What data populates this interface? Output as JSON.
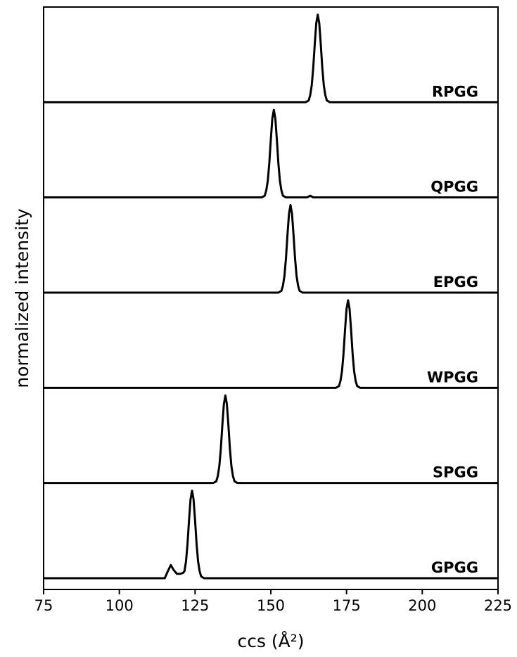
{
  "chart_data": {
    "type": "line",
    "xlabel": "ccs (Å²)",
    "ylabel": "normalized intensity",
    "color": "#000000",
    "xlim": [
      75,
      225
    ],
    "xticks": [
      75,
      100,
      125,
      150,
      175,
      200,
      225
    ],
    "series": [
      {
        "name": "RPGG",
        "x": [
          75,
          161.5,
          162.5,
          163,
          163.5,
          164,
          164.5,
          165,
          165.5,
          166,
          166.5,
          167,
          167.5,
          168,
          168.5,
          169.5,
          225
        ],
        "values": [
          0,
          0,
          0.02,
          0.08,
          0.19,
          0.39,
          0.66,
          0.9,
          1,
          0.9,
          0.66,
          0.39,
          0.19,
          0.08,
          0.02,
          0,
          0
        ]
      },
      {
        "name": "QPGG",
        "x": [
          75,
          147,
          148,
          148.5,
          149,
          149.5,
          150,
          150.5,
          151,
          151.5,
          152,
          152.5,
          153,
          153.5,
          154,
          155,
          162,
          163,
          164,
          225
        ],
        "values": [
          0,
          0,
          0.02,
          0.08,
          0.19,
          0.39,
          0.66,
          0.9,
          1,
          0.9,
          0.66,
          0.39,
          0.19,
          0.08,
          0.02,
          0,
          0,
          0.02,
          0,
          0
        ]
      },
      {
        "name": "EPGG",
        "x": [
          75,
          152.5,
          153.5,
          154,
          154.5,
          155,
          155.5,
          156,
          156.5,
          157,
          157.5,
          158,
          158.5,
          159,
          159.5,
          160.5,
          225
        ],
        "values": [
          0,
          0,
          0.02,
          0.08,
          0.19,
          0.39,
          0.66,
          0.9,
          1,
          0.9,
          0.66,
          0.39,
          0.19,
          0.08,
          0.02,
          0,
          0
        ]
      },
      {
        "name": "WPGG",
        "x": [
          75,
          171.5,
          172.5,
          173,
          173.5,
          174,
          174.5,
          175,
          175.5,
          176,
          176.5,
          177,
          177.5,
          178,
          178.5,
          179.5,
          225
        ],
        "values": [
          0,
          0,
          0.02,
          0.08,
          0.19,
          0.39,
          0.66,
          0.9,
          1,
          0.9,
          0.66,
          0.39,
          0.19,
          0.08,
          0.02,
          0,
          0
        ]
      },
      {
        "name": "SPGG",
        "x": [
          75,
          131,
          132,
          132.5,
          133,
          133.5,
          134,
          134.5,
          135,
          135.5,
          136,
          136.5,
          137,
          137.5,
          138,
          139,
          225
        ],
        "values": [
          0,
          0,
          0.02,
          0.08,
          0.19,
          0.39,
          0.66,
          0.9,
          1,
          0.9,
          0.66,
          0.39,
          0.19,
          0.08,
          0.02,
          0,
          0
        ]
      },
      {
        "name": "GPGG",
        "x": [
          75,
          115,
          116,
          117,
          118,
          119,
          120,
          121,
          121.5,
          122,
          122.5,
          123,
          123.5,
          124,
          124.5,
          125,
          125.5,
          126,
          126.5,
          127,
          128,
          225
        ],
        "values": [
          0,
          0,
          0.08,
          0.15,
          0.09,
          0.05,
          0.05,
          0.06,
          0.08,
          0.19,
          0.39,
          0.66,
          0.9,
          1,
          0.9,
          0.66,
          0.39,
          0.19,
          0.08,
          0.02,
          0,
          0
        ]
      }
    ]
  }
}
